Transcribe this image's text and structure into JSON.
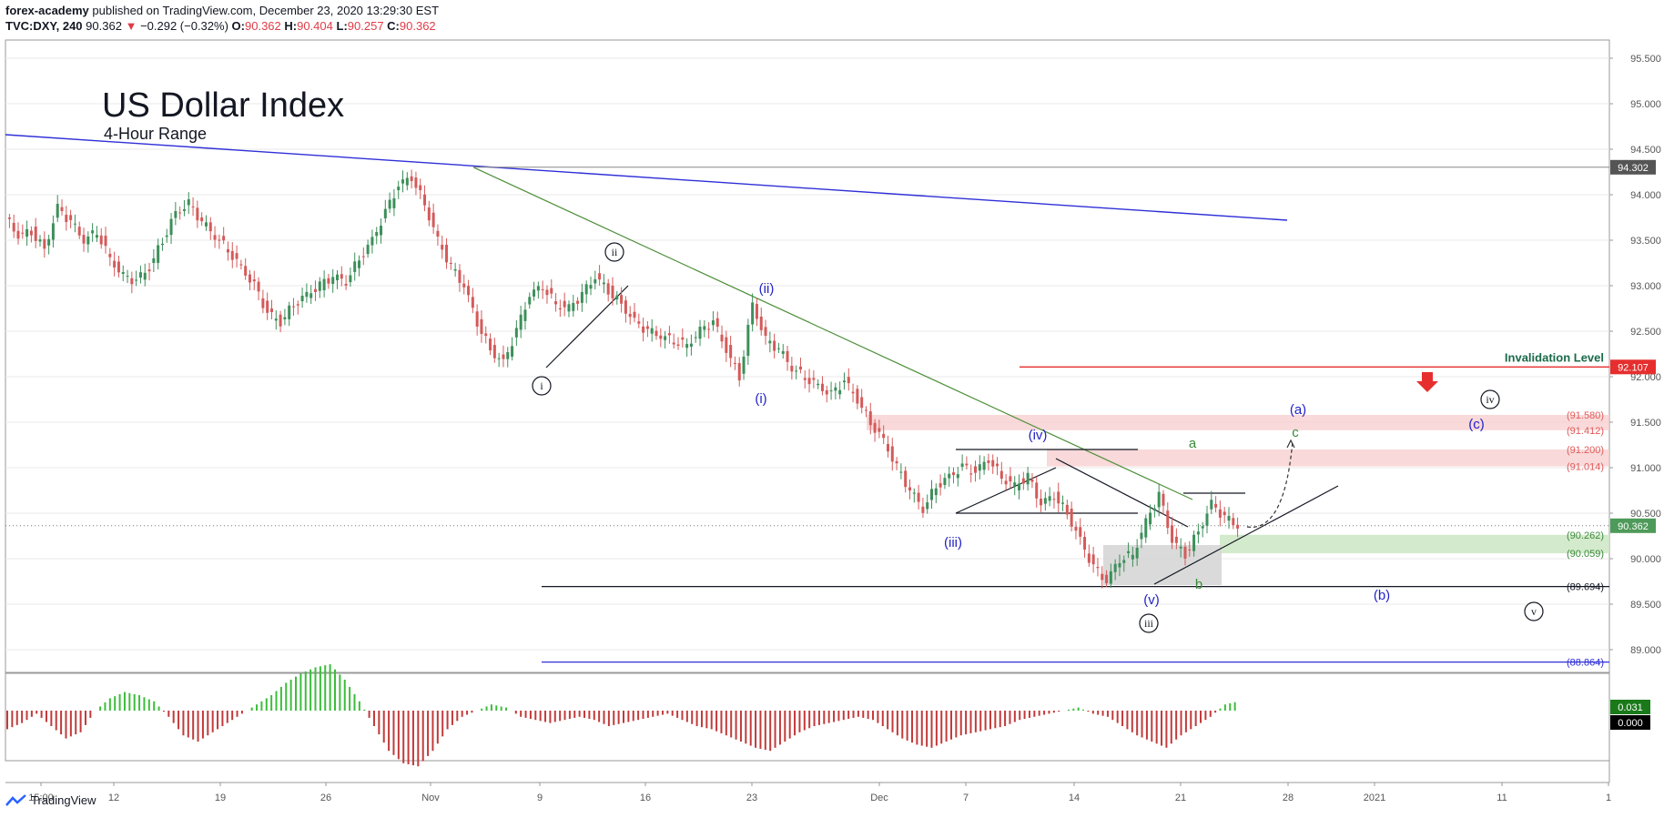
{
  "header": {
    "publisher": "forex-academy",
    "published_text": "published on TradingView.com, December 23, 2020 13:29:30 EST",
    "symbol": "TVC:DXY, 240",
    "last": "90.362",
    "change": "−0.292 (−0.32%)",
    "open_label": "O:",
    "open": "90.362",
    "high_label": "H:",
    "high": "90.404",
    "low_label": "L:",
    "low": "90.257",
    "close_label": "C:",
    "close": "90.362",
    "down_arrow": "▼"
  },
  "chart_title": "US Dollar Index",
  "chart_subtitle": "4-Hour Range",
  "footer": {
    "brand": "TradingView"
  },
  "colors": {
    "up": "#26a69a",
    "down": "#ef5350",
    "candle_up": "#3d8f5a",
    "candle_down": "#d45a5a",
    "blue": "#2f2fd8",
    "green_line": "#4d8f3a",
    "red_level": "#e62e2e",
    "osc_pos": "#3cbd3c",
    "osc_neg": "#c23a3a",
    "grid": "#e8e8e8"
  },
  "chart_data": {
    "type": "candlestick",
    "ylim": [
      88.75,
      95.7
    ],
    "y_ticks": [
      "95.500",
      "95.000",
      "94.500",
      "94.000",
      "93.500",
      "93.000",
      "92.500",
      "92.000",
      "91.500",
      "91.000",
      "90.500",
      "90.000",
      "89.500",
      "89.000"
    ],
    "x_ticks": [
      "15:00",
      "12",
      "19",
      "26",
      "Nov",
      "9",
      "16",
      "23",
      "Dec",
      "7",
      "14",
      "21",
      "28",
      "2021",
      "11",
      "1"
    ],
    "price_labels": [
      {
        "text": "94.302",
        "value": 94.302,
        "style": "gray"
      },
      {
        "text": "92.107",
        "value": 92.107,
        "style": "red"
      },
      {
        "text": "90.362",
        "value": 90.362,
        "style": "green"
      }
    ],
    "level_labels": [
      {
        "text": "(91.580)",
        "value": 91.58,
        "color": "#e05a5a"
      },
      {
        "text": "(91.412)",
        "value": 91.412,
        "color": "#e05a5a"
      },
      {
        "text": "(91.200)",
        "value": 91.2,
        "color": "#e05a5a"
      },
      {
        "text": "(91.014)",
        "value": 91.014,
        "color": "#e05a5a"
      },
      {
        "text": "(90.262)",
        "value": 90.262,
        "color": "#3a8a3a"
      },
      {
        "text": "(90.059)",
        "value": 90.059,
        "color": "#3a8a3a"
      },
      {
        "text": "(89.694)",
        "value": 89.694,
        "color": "#131722"
      },
      {
        "text": "(88.864)",
        "value": 88.864,
        "color": "#2f2fd8"
      }
    ],
    "invalidation_label": "Invalidation Level",
    "waves_circled": [
      "i",
      "ii",
      "iii",
      "iv",
      "v"
    ],
    "waves_blue": [
      "(i)",
      "(ii)",
      "(iii)",
      "(iv)",
      "(v)",
      "(a)",
      "(b)",
      "(c)"
    ],
    "waves_green": [
      "a",
      "b",
      "c"
    ],
    "oscillator_labels": [
      {
        "text": "0.031",
        "style": "green"
      },
      {
        "text": "0.000",
        "style": "black"
      }
    ],
    "price_path": [
      93.75,
      93.55,
      93.6,
      93.4,
      93.85,
      93.7,
      93.5,
      93.6,
      93.3,
      93.1,
      93.05,
      93.2,
      93.5,
      93.8,
      93.9,
      93.7,
      93.55,
      93.4,
      93.2,
      93.0,
      92.7,
      92.6,
      92.8,
      92.9,
      93.0,
      93.1,
      93.05,
      93.3,
      93.5,
      93.8,
      94.1,
      94.2,
      93.9,
      93.5,
      93.2,
      93.0,
      92.6,
      92.3,
      92.15,
      92.5,
      92.9,
      93.0,
      92.8,
      92.75,
      92.9,
      93.1,
      92.95,
      92.8,
      92.6,
      92.5,
      92.45,
      92.4,
      92.35,
      92.5,
      92.6,
      92.3,
      92.0,
      92.8,
      92.4,
      92.3,
      92.1,
      92.0,
      91.9,
      91.8,
      91.95,
      91.75,
      91.5,
      91.3,
      91.0,
      90.75,
      90.55,
      90.8,
      90.9,
      91.0,
      90.95,
      91.1,
      90.9,
      90.8,
      90.9,
      90.6,
      90.7,
      90.5,
      90.2,
      89.9,
      89.75,
      90.0,
      90.05,
      90.4,
      90.7,
      90.2,
      90.05,
      90.3,
      90.6,
      90.45,
      90.362
    ],
    "oscillator": [
      -0.06,
      -0.04,
      -0.01,
      -0.05,
      -0.09,
      -0.07,
      0.0,
      0.04,
      0.06,
      0.05,
      0.03,
      -0.02,
      -0.08,
      -0.1,
      -0.07,
      -0.04,
      -0.01,
      0.02,
      0.05,
      0.09,
      0.12,
      0.14,
      0.15,
      0.1,
      0.03,
      -0.05,
      -0.13,
      -0.17,
      -0.18,
      -0.13,
      -0.06,
      -0.02,
      0.0,
      0.02,
      0.01,
      -0.02,
      -0.03,
      -0.04,
      -0.03,
      -0.02,
      -0.03,
      -0.05,
      -0.04,
      -0.03,
      -0.02,
      -0.01,
      -0.03,
      -0.05,
      -0.06,
      -0.08,
      -0.1,
      -0.12,
      -0.13,
      -0.1,
      -0.07,
      -0.05,
      -0.04,
      -0.03,
      -0.02,
      -0.03,
      -0.06,
      -0.09,
      -0.11,
      -0.12,
      -0.1,
      -0.08,
      -0.07,
      -0.06,
      -0.05,
      -0.03,
      -0.02,
      -0.01,
      0.0,
      0.01,
      -0.01,
      -0.02,
      -0.05,
      -0.08,
      -0.1,
      -0.12,
      -0.08,
      -0.05,
      -0.02,
      0.02,
      0.031
    ]
  }
}
